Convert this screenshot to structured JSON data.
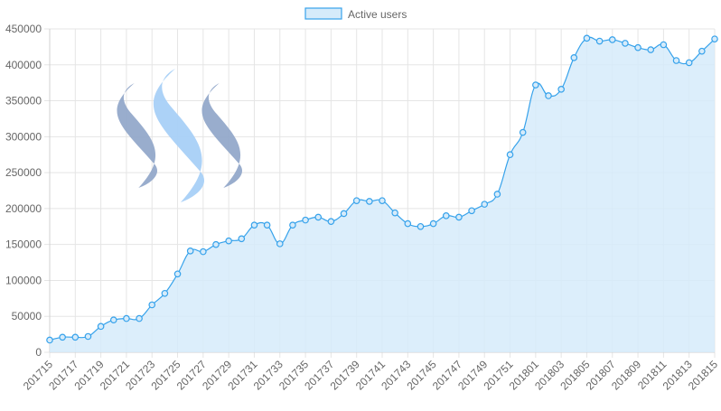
{
  "colors": {
    "line": "#36a2eb",
    "fill": "#d6ebfa",
    "grid": "#e5e5e5",
    "axis_text": "#666666",
    "logo_dark": "#8ea4c8",
    "logo_light": "#a8d0f7"
  },
  "logo": {
    "icon": "steem-logo-icon"
  },
  "chart_data": {
    "type": "line",
    "fill": "area",
    "grid": true,
    "legend_placement": "top-center",
    "ylim": [
      0,
      450000
    ],
    "yticks": [
      0,
      50000,
      100000,
      150000,
      200000,
      250000,
      300000,
      350000,
      400000,
      450000
    ],
    "xtick_labels": [
      "201715",
      "201717",
      "201719",
      "201721",
      "201723",
      "201725",
      "201727",
      "201729",
      "201731",
      "201733",
      "201735",
      "201737",
      "201739",
      "201741",
      "201743",
      "201745",
      "201747",
      "201749",
      "201751",
      "201801",
      "201803",
      "201805",
      "201807",
      "201809",
      "201811",
      "201813",
      "201815"
    ],
    "categories": [
      "201715",
      "201716",
      "201717",
      "201718",
      "201719",
      "201720",
      "201721",
      "201722",
      "201723",
      "201724",
      "201725",
      "201726",
      "201727",
      "201728",
      "201729",
      "201730",
      "201731",
      "201732",
      "201733",
      "201734",
      "201735",
      "201736",
      "201737",
      "201738",
      "201739",
      "201740",
      "201741",
      "201742",
      "201743",
      "201744",
      "201745",
      "201746",
      "201747",
      "201748",
      "201749",
      "201750",
      "201751",
      "201752",
      "201801",
      "201802",
      "201803",
      "201804",
      "201805",
      "201806",
      "201807",
      "201808",
      "201809",
      "201810",
      "201811",
      "201812",
      "201813",
      "201814",
      "201815"
    ],
    "series": [
      {
        "name": "Active users",
        "values": [
          17000,
          21000,
          21000,
          22000,
          36000,
          45000,
          47000,
          47000,
          66000,
          82000,
          109000,
          141000,
          140000,
          150000,
          155000,
          158000,
          177000,
          177000,
          151000,
          177000,
          184000,
          188000,
          182000,
          193000,
          211000,
          210000,
          211000,
          194000,
          179000,
          175000,
          179000,
          190000,
          188000,
          197000,
          206000,
          220000,
          275000,
          306000,
          372000,
          357000,
          366000,
          410000,
          437000,
          433000,
          435000,
          430000,
          424000,
          421000,
          428000,
          406000,
          403000,
          419000,
          436000
        ]
      }
    ]
  }
}
